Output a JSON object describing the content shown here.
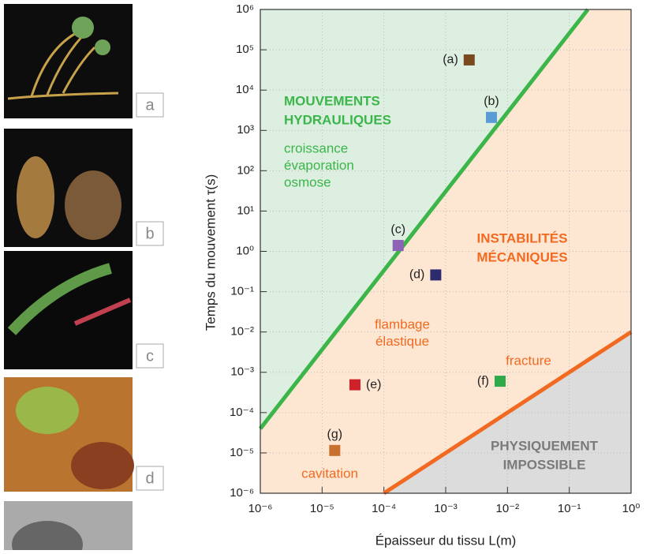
{
  "panels": [
    "a",
    "b",
    "c",
    "d"
  ],
  "chart_data": {
    "type": "scatter",
    "xlabel": "Épaisseur du tissu L(m)",
    "ylabel": "Temps du mouvement  τ(s)",
    "log_x": true,
    "log_y": true,
    "grid": true,
    "xlim": [
      1e-06,
      1
    ],
    "ylim": [
      1e-06,
      1000000
    ],
    "xticks": [
      {
        "value": 1e-06,
        "label": "10⁻⁶"
      },
      {
        "value": 1e-05,
        "label": "10⁻⁵"
      },
      {
        "value": 0.0001,
        "label": "10⁻⁴"
      },
      {
        "value": 0.001,
        "label": "10⁻³"
      },
      {
        "value": 0.01,
        "label": "10⁻²"
      },
      {
        "value": 0.1,
        "label": "10⁻¹"
      },
      {
        "value": 1,
        "label": "10⁰"
      }
    ],
    "yticks": [
      {
        "value": 1e-06,
        "label": "10⁻⁶"
      },
      {
        "value": 1e-05,
        "label": "10⁻⁵"
      },
      {
        "value": 0.0001,
        "label": "10⁻⁴"
      },
      {
        "value": 0.001,
        "label": "10⁻³"
      },
      {
        "value": 0.01,
        "label": "10⁻²"
      },
      {
        "value": 0.1,
        "label": "10⁻¹"
      },
      {
        "value": 1,
        "label": "10⁰"
      },
      {
        "value": 10,
        "label": "10¹"
      },
      {
        "value": 100,
        "label": "10²"
      },
      {
        "value": 1000,
        "label": "10³"
      },
      {
        "value": 10000,
        "label": "10⁴"
      },
      {
        "value": 100000,
        "label": "10⁵"
      },
      {
        "value": 1000000,
        "label": "10⁶"
      }
    ],
    "points": [
      {
        "label": "(a)",
        "x": 0.0024,
        "y": 56000,
        "color": "#7a4a1e"
      },
      {
        "label": "(b)",
        "x": 0.0055,
        "y": 2100,
        "color": "#5b9bd5"
      },
      {
        "label": "(c)",
        "x": 0.00017,
        "y": 1.4,
        "color": "#8e62b5"
      },
      {
        "label": "(d)",
        "x": 0.00069,
        "y": 0.26,
        "color": "#2e2a6e"
      },
      {
        "label": "(e)",
        "x": 3.4e-05,
        "y": 0.00049,
        "color": "#d0202a"
      },
      {
        "label": "(f)",
        "x": 0.0076,
        "y": 0.0006,
        "color": "#2eaa4a"
      },
      {
        "label": "(g)",
        "x": 1.6e-05,
        "y": 1.15e-05,
        "color": "#c8702e"
      }
    ],
    "lines": [
      {
        "color": "#3cb54a",
        "x": [
          1e-06,
          0.2
        ],
        "y": [
          4e-05,
          1000000
        ]
      },
      {
        "color": "#f26a21",
        "x": [
          0.0001,
          1
        ],
        "y": [
          1e-06,
          0.01
        ]
      }
    ],
    "annotations": [
      {
        "lines": [
          "MOUVEMENTS",
          "HYDRAULIQUES"
        ],
        "color": "#3cb54a",
        "bold": true
      },
      {
        "lines": [
          "croissance",
          "évaporation",
          "osmose"
        ],
        "color": "#3cb54a",
        "bold": false
      },
      {
        "lines": [
          "INSTABILITÉS",
          "MÉCANIQUES"
        ],
        "color": "#f26a21",
        "bold": true
      },
      {
        "lines": [
          "flambage",
          "élastique"
        ],
        "color": "#f26a21",
        "bold": false
      },
      {
        "lines": [
          "fracture"
        ],
        "color": "#f26a21",
        "bold": false
      },
      {
        "lines": [
          "cavitation"
        ],
        "color": "#f26a21",
        "bold": false
      },
      {
        "lines": [
          "PHYSIQUEMENT",
          "IMPOSSIBLE"
        ],
        "color": "#7a7a7a",
        "bold": true
      }
    ]
  }
}
